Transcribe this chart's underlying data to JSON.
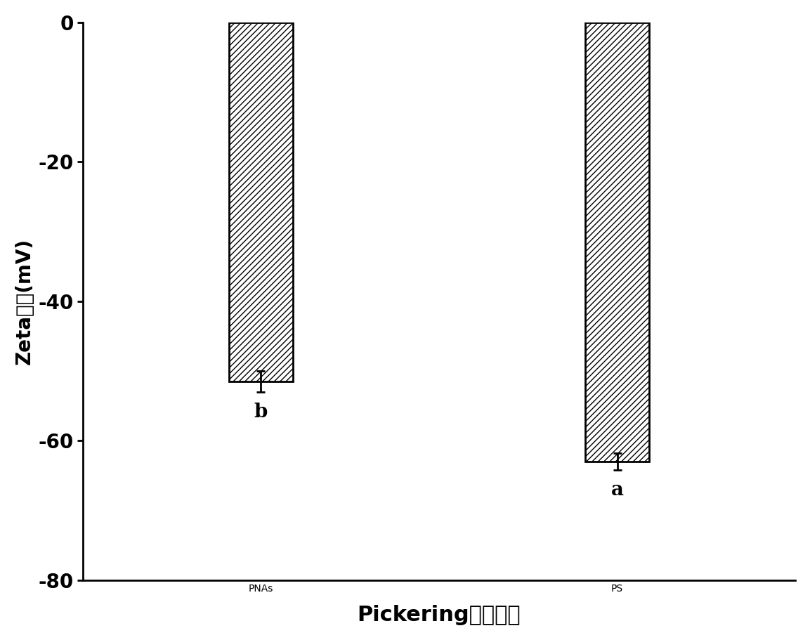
{
  "categories": [
    "PNAs",
    "PS"
  ],
  "values": [
    -51.5,
    -63.0
  ],
  "errors": [
    1.5,
    1.2
  ],
  "labels": [
    "b",
    "a"
  ],
  "bar_width": 0.18,
  "bar_facecolor": "white",
  "bar_edgecolor": "black",
  "hatch": "////",
  "ylim": [
    -80,
    0
  ],
  "yticks": [
    0,
    -20,
    -40,
    -60,
    -80
  ],
  "ylabel": "Zeta电位(mV)",
  "xlabel": "Pickering粒子种类",
  "xlabel_fontsize": 22,
  "ylabel_fontsize": 20,
  "tick_fontsize": 20,
  "label_fontsize": 20,
  "category_fontsize": 20,
  "background_color": "#ffffff",
  "bar_linewidth": 2.0,
  "axis_linewidth": 2.0,
  "x_positions": [
    1,
    2
  ],
  "xlim": [
    0.5,
    2.5
  ]
}
